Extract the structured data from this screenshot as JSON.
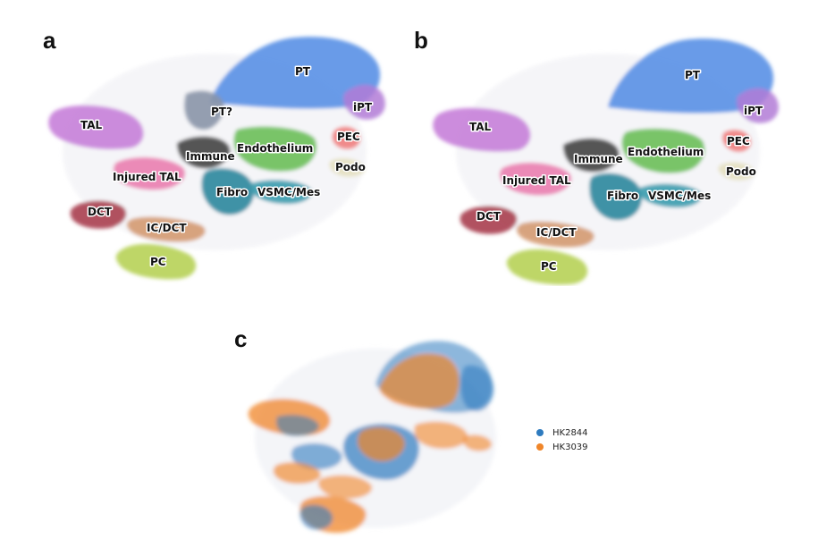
{
  "panels": {
    "a": {
      "letter": "a"
    },
    "b": {
      "letter": "b"
    },
    "c": {
      "letter": "c"
    }
  },
  "chart_data": [
    {
      "type": "scatter",
      "panel": "a",
      "title": "",
      "clusters": [
        {
          "name": "PT",
          "color": "#5b93e6"
        },
        {
          "name": "iPT",
          "color": "#b27bd6"
        },
        {
          "name": "PT?",
          "color": "#8a95a8"
        },
        {
          "name": "PEC",
          "color": "#f08080"
        },
        {
          "name": "Podo",
          "color": "#e6e1c4"
        },
        {
          "name": "TAL",
          "color": "#c77fd9"
        },
        {
          "name": "Immune",
          "color": "#444444"
        },
        {
          "name": "Endothelium",
          "color": "#6cbf5a"
        },
        {
          "name": "Injured TAL",
          "color": "#e86fa8"
        },
        {
          "name": "Fibro",
          "color": "#2f8aa0"
        },
        {
          "name": "VSMC/Mes",
          "color": "#3b9cae"
        },
        {
          "name": "DCT",
          "color": "#a83e4f"
        },
        {
          "name": "IC/DCT",
          "color": "#d2956a"
        },
        {
          "name": "PC",
          "color": "#b8d25a"
        }
      ]
    },
    {
      "type": "scatter",
      "panel": "b",
      "title": "",
      "clusters": [
        {
          "name": "PT",
          "color": "#5b93e6"
        },
        {
          "name": "iPT",
          "color": "#b27bd6"
        },
        {
          "name": "PEC",
          "color": "#f08080"
        },
        {
          "name": "Podo",
          "color": "#e6e1c4"
        },
        {
          "name": "TAL",
          "color": "#c77fd9"
        },
        {
          "name": "Immune",
          "color": "#444444"
        },
        {
          "name": "Endothelium",
          "color": "#6cbf5a"
        },
        {
          "name": "Injured TAL",
          "color": "#e86fa8"
        },
        {
          "name": "Fibro",
          "color": "#2f8aa0"
        },
        {
          "name": "VSMC/Mes",
          "color": "#3b9cae"
        },
        {
          "name": "DCT",
          "color": "#a83e4f"
        },
        {
          "name": "IC/DCT",
          "color": "#d2956a"
        },
        {
          "name": "PC",
          "color": "#b8d25a"
        }
      ]
    },
    {
      "type": "scatter",
      "panel": "c",
      "title": "",
      "legend_position": "right",
      "series": [
        {
          "name": "HK2844",
          "color": "#2e7bbf"
        },
        {
          "name": "HK3039",
          "color": "#f0862a"
        }
      ]
    }
  ]
}
